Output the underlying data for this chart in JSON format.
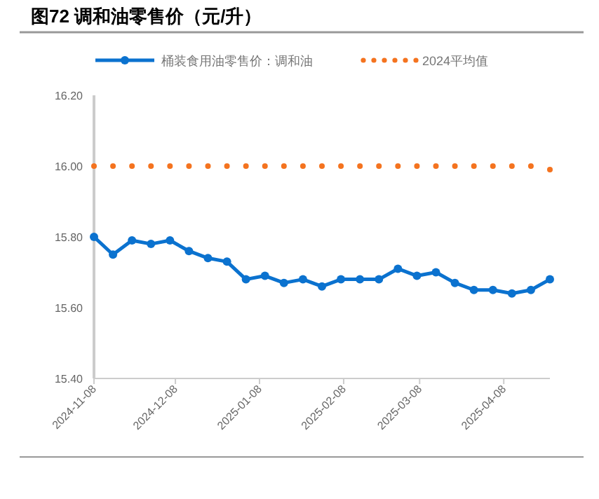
{
  "chart_data": {
    "type": "line",
    "title": "图72 调和油零售价（元/升）",
    "x": [
      "2024-11-08",
      "2024-11-15",
      "2024-11-22",
      "2024-11-29",
      "2024-12-06",
      "2024-12-13",
      "2024-12-20",
      "2024-12-27",
      "2025-01-03",
      "2025-01-10",
      "2025-01-17",
      "2025-01-24",
      "2025-01-31",
      "2025-02-07",
      "2025-02-14",
      "2025-02-21",
      "2025-02-28",
      "2025-03-07",
      "2025-03-14",
      "2025-03-21",
      "2025-03-28",
      "2025-04-04",
      "2025-04-11",
      "2025-04-18",
      "2025-04-25"
    ],
    "series": [
      {
        "name": "桶装食用油零售价：调和油",
        "color": "#0b72cf",
        "marker": "circle",
        "line_style": "solid",
        "values": [
          15.8,
          15.75,
          15.79,
          15.78,
          15.79,
          15.76,
          15.74,
          15.73,
          15.68,
          15.69,
          15.67,
          15.68,
          15.66,
          15.68,
          15.68,
          15.68,
          15.71,
          15.69,
          15.7,
          15.67,
          15.65,
          15.65,
          15.64,
          15.65,
          15.68
        ]
      },
      {
        "name": "2024平均值",
        "type": "scatter",
        "color": "#f4731f",
        "marker": "circle",
        "values": [
          16.0,
          16.0,
          16.0,
          16.0,
          16.0,
          16.0,
          16.0,
          16.0,
          16.0,
          16.0,
          16.0,
          16.0,
          16.0,
          16.0,
          16.0,
          16.0,
          16.0,
          16.0,
          16.0,
          16.0,
          16.0,
          16.0,
          16.0,
          16.0,
          15.99
        ]
      }
    ],
    "xlim": [
      "2024-11-08",
      "2025-04-25"
    ],
    "xticks": [
      {
        "value": "2024-11-08",
        "label": "2024-11-08"
      },
      {
        "value": "2024-12-08",
        "label": "2024-12-08"
      },
      {
        "value": "2025-01-08",
        "label": "2025-01-08"
      },
      {
        "value": "2025-02-08",
        "label": "2025-02-08"
      },
      {
        "value": "2025-03-08",
        "label": "2025-03-08"
      },
      {
        "value": "2025-04-08",
        "label": "2025-04-08"
      }
    ],
    "ylim": [
      15.4,
      16.2
    ],
    "yticks": [
      {
        "value": 15.4,
        "label": "15.40"
      },
      {
        "value": 15.6,
        "label": "15.60"
      },
      {
        "value": 15.8,
        "label": "15.80"
      },
      {
        "value": 16.0,
        "label": "16.00"
      },
      {
        "value": 16.2,
        "label": "16.20"
      }
    ],
    "grid": false,
    "legend": "top"
  }
}
